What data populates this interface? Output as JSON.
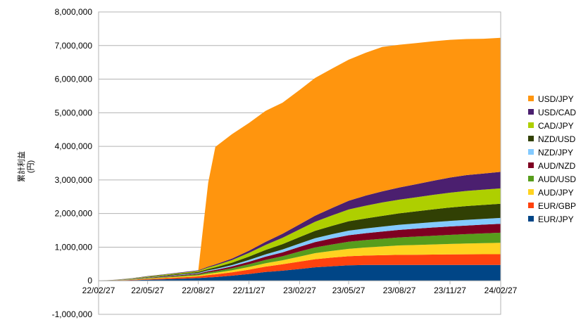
{
  "chart_data": {
    "type": "area",
    "stacked": true,
    "ylabel": "累計利益\n(円)",
    "ylim": [
      -1000000,
      8000000
    ],
    "y_ticks": [
      {
        "value": 8000000,
        "label": "8,000,000"
      },
      {
        "value": 7000000,
        "label": "7,000,000"
      },
      {
        "value": 6000000,
        "label": "6,000,000"
      },
      {
        "value": 5000000,
        "label": "5,000,000"
      },
      {
        "value": 4000000,
        "label": "4,000,000"
      },
      {
        "value": 3000000,
        "label": "3,000,000"
      },
      {
        "value": 2000000,
        "label": "2,000,000"
      },
      {
        "value": 1000000,
        "label": "1,000,000"
      },
      {
        "value": 0,
        "label": "0"
      },
      {
        "value": -1000000,
        "label": "-1,000,000"
      }
    ],
    "x_ticks": [
      "22/02/27",
      "22/05/27",
      "22/08/27",
      "22/11/27",
      "23/02/27",
      "23/05/27",
      "23/08/27",
      "23/11/27",
      "24/02/27"
    ],
    "x": [
      "22/02/27",
      "22/03/27",
      "22/04/27",
      "22/05/27",
      "22/06/27",
      "22/07/27",
      "22/08/27",
      "22/09/14",
      "22/09/27",
      "22/10/27",
      "22/11/27",
      "22/12/27",
      "23/01/27",
      "23/02/27",
      "23/03/27",
      "23/04/27",
      "23/05/27",
      "23/06/27",
      "23/07/27",
      "23/08/27",
      "23/09/27",
      "23/10/27",
      "23/11/27",
      "23/12/27",
      "24/01/27",
      "24/02/27"
    ],
    "grid": true,
    "legend_position": "right",
    "series": [
      {
        "name": "EUR/JPY",
        "color": "#004586",
        "values": [
          0,
          5000,
          15000,
          30000,
          45000,
          60000,
          80000,
          100000,
          110000,
          150000,
          200000,
          260000,
          300000,
          350000,
          400000,
          430000,
          460000,
          470000,
          470000,
          470000,
          470000,
          470000,
          470000,
          470000,
          470000,
          470000
        ]
      },
      {
        "name": "EUR/GBP",
        "color": "#ff420e",
        "values": [
          0,
          4000,
          10000,
          20000,
          30000,
          40000,
          50000,
          70000,
          80000,
          100000,
          130000,
          160000,
          190000,
          220000,
          240000,
          260000,
          270000,
          280000,
          290000,
          300000,
          305000,
          310000,
          315000,
          318000,
          320000,
          320000
        ]
      },
      {
        "name": "AUD/JPY",
        "color": "#ffd320",
        "values": [
          0,
          3000,
          8000,
          15000,
          20000,
          25000,
          30000,
          40000,
          45000,
          60000,
          80000,
          100000,
          120000,
          150000,
          180000,
          200000,
          220000,
          240000,
          260000,
          280000,
          290000,
          300000,
          310000,
          320000,
          330000,
          340000
        ]
      },
      {
        "name": "AUD/USD",
        "color": "#579d1c",
        "values": [
          0,
          3000,
          8000,
          15000,
          20000,
          25000,
          30000,
          40000,
          45000,
          60000,
          80000,
          100000,
          120000,
          150000,
          170000,
          190000,
          210000,
          220000,
          230000,
          240000,
          250000,
          260000,
          270000,
          280000,
          290000,
          300000
        ]
      },
      {
        "name": "AUD/NZD",
        "color": "#7e0021",
        "values": [
          0,
          2000,
          5000,
          10000,
          15000,
          20000,
          25000,
          35000,
          40000,
          55000,
          75000,
          95000,
          115000,
          140000,
          160000,
          180000,
          195000,
          205000,
          215000,
          225000,
          235000,
          245000,
          250000,
          255000,
          260000,
          265000
        ]
      },
      {
        "name": "NZD/JPY",
        "color": "#83caff",
        "values": [
          0,
          2000,
          5000,
          8000,
          12000,
          15000,
          18000,
          25000,
          30000,
          40000,
          55000,
          70000,
          85000,
          100000,
          115000,
          125000,
          135000,
          140000,
          145000,
          150000,
          155000,
          160000,
          165000,
          170000,
          172000,
          175000
        ]
      },
      {
        "name": "NZD/USD",
        "color": "#314004",
        "values": [
          0,
          3000,
          8000,
          15000,
          20000,
          25000,
          30000,
          40000,
          50000,
          70000,
          100000,
          130000,
          160000,
          190000,
          220000,
          250000,
          280000,
          300000,
          320000,
          340000,
          360000,
          380000,
          400000,
          410000,
          415000,
          420000
        ]
      },
      {
        "name": "CAD/JPY",
        "color": "#aecf00",
        "values": [
          0,
          3000,
          8000,
          15000,
          20000,
          25000,
          30000,
          45000,
          55000,
          80000,
          110000,
          150000,
          190000,
          230000,
          270000,
          310000,
          350000,
          380000,
          400000,
          410000,
          420000,
          430000,
          440000,
          450000,
          455000,
          460000
        ]
      },
      {
        "name": "USD/CAD",
        "color": "#4b1f6f",
        "values": [
          0,
          2000,
          5000,
          10000,
          12000,
          15000,
          18000,
          25000,
          30000,
          45000,
          65000,
          90000,
          120000,
          150000,
          180000,
          220000,
          260000,
          300000,
          330000,
          360000,
          390000,
          420000,
          450000,
          470000,
          480000,
          490000
        ]
      },
      {
        "name": "USD/JPY",
        "color": "#ff950e",
        "values": [
          0,
          0,
          0,
          0,
          0,
          0,
          0,
          2500000,
          3500000,
          3700000,
          3800000,
          3900000,
          3900000,
          4000000,
          4100000,
          4150000,
          4200000,
          4250000,
          4300000,
          4250000,
          4200000,
          4150000,
          4100000,
          4050000,
          4010000,
          3990000
        ]
      }
    ]
  }
}
